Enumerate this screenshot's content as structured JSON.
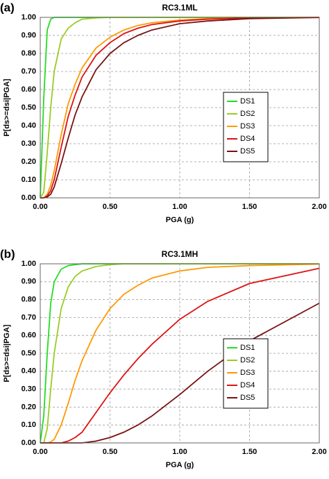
{
  "chart_data": [
    {
      "type": "line",
      "panel": "(a)",
      "title": "RC3.1ML",
      "xlabel": "PGA (g)",
      "ylabel": "P[ds>=dsi|PGA]",
      "x": [
        0,
        0.025,
        0.05,
        0.075,
        0.1,
        0.15,
        0.2,
        0.25,
        0.3,
        0.4,
        0.5,
        0.6,
        0.7,
        0.8,
        1.0,
        1.2,
        1.5,
        2.0
      ],
      "series": [
        {
          "name": "DS1",
          "color": "#22dd22",
          "values": [
            0,
            0.55,
            0.93,
            0.99,
            1,
            1,
            1,
            1,
            1,
            1,
            1,
            1,
            1,
            1,
            1,
            1,
            1,
            1
          ]
        },
        {
          "name": "DS2",
          "color": "#99cc22",
          "values": [
            0,
            0.03,
            0.25,
            0.5,
            0.7,
            0.88,
            0.94,
            0.97,
            0.99,
            0.997,
            1,
            1,
            1,
            1,
            1,
            1,
            1,
            1
          ]
        },
        {
          "name": "DS3",
          "color": "#ff9900",
          "values": [
            0,
            0,
            0.02,
            0.07,
            0.15,
            0.35,
            0.52,
            0.63,
            0.72,
            0.83,
            0.89,
            0.93,
            0.955,
            0.97,
            0.985,
            0.993,
            0.998,
            1
          ]
        },
        {
          "name": "DS4",
          "color": "#dd1111",
          "values": [
            0,
            0,
            0.01,
            0.04,
            0.1,
            0.28,
            0.45,
            0.57,
            0.67,
            0.79,
            0.86,
            0.91,
            0.94,
            0.96,
            0.98,
            0.99,
            0.997,
            1
          ]
        },
        {
          "name": "DS5",
          "color": "#771111",
          "values": [
            0,
            0,
            0.005,
            0.02,
            0.06,
            0.19,
            0.33,
            0.46,
            0.56,
            0.71,
            0.8,
            0.86,
            0.9,
            0.93,
            0.965,
            0.98,
            0.993,
            0.999
          ]
        }
      ],
      "xlim": [
        0,
        2
      ],
      "ylim": [
        0,
        1
      ],
      "xticks": [
        {
          "value": 0,
          "label": "0.00"
        },
        {
          "value": 0.5,
          "label": "0.50"
        },
        {
          "value": 1,
          "label": "1.00"
        },
        {
          "value": 1.5,
          "label": "1.50"
        },
        {
          "value": 2,
          "label": "2.00"
        }
      ],
      "yticks": [
        {
          "value": 0,
          "label": "0.00"
        },
        {
          "value": 0.1,
          "label": "0.10"
        },
        {
          "value": 0.2,
          "label": "0.20"
        },
        {
          "value": 0.3,
          "label": "0.30"
        },
        {
          "value": 0.4,
          "label": "0.40"
        },
        {
          "value": 0.5,
          "label": "0.50"
        },
        {
          "value": 0.6,
          "label": "0.60"
        },
        {
          "value": 0.7,
          "label": "0.70"
        },
        {
          "value": 0.8,
          "label": "0.80"
        },
        {
          "value": 0.9,
          "label": "0.90"
        },
        {
          "value": 1,
          "label": "1.00"
        }
      ],
      "grid": true,
      "legend": "right"
    },
    {
      "type": "line",
      "panel": "(b)",
      "title": "RC3.1MH",
      "xlabel": "PGA (g)",
      "ylabel": "P[ds>=dsi|PGA]",
      "x": [
        0,
        0.025,
        0.05,
        0.075,
        0.1,
        0.15,
        0.2,
        0.25,
        0.3,
        0.4,
        0.5,
        0.6,
        0.7,
        0.8,
        1.0,
        1.2,
        1.5,
        2.0
      ],
      "series": [
        {
          "name": "DS1",
          "color": "#22dd22",
          "values": [
            0,
            0.15,
            0.5,
            0.78,
            0.9,
            0.97,
            0.99,
            0.995,
            1,
            1,
            1,
            1,
            1,
            1,
            1,
            1,
            1,
            1
          ]
        },
        {
          "name": "DS2",
          "color": "#99cc22",
          "values": [
            0,
            0,
            0.08,
            0.3,
            0.5,
            0.75,
            0.87,
            0.93,
            0.96,
            0.985,
            0.995,
            1,
            1,
            1,
            1,
            1,
            1,
            1
          ]
        },
        {
          "name": "DS3",
          "color": "#ff9900",
          "values": [
            0,
            0,
            0,
            0.005,
            0.02,
            0.1,
            0.22,
            0.35,
            0.46,
            0.63,
            0.75,
            0.83,
            0.88,
            0.92,
            0.96,
            0.98,
            0.99,
            0.998
          ]
        },
        {
          "name": "DS4",
          "color": "#dd1111",
          "values": [
            0,
            0,
            0,
            0,
            0,
            0,
            0.01,
            0.03,
            0.06,
            0.17,
            0.28,
            0.38,
            0.47,
            0.55,
            0.69,
            0.79,
            0.89,
            0.975
          ]
        },
        {
          "name": "DS5",
          "color": "#771111",
          "values": [
            0,
            0,
            0,
            0,
            0,
            0,
            0,
            0,
            0,
            0.01,
            0.03,
            0.06,
            0.1,
            0.15,
            0.27,
            0.4,
            0.57,
            0.78
          ]
        }
      ],
      "xlim": [
        0,
        2
      ],
      "ylim": [
        0,
        1
      ],
      "xticks": [
        {
          "value": 0,
          "label": "0.00"
        },
        {
          "value": 0.5,
          "label": "0.50"
        },
        {
          "value": 1,
          "label": "1.00"
        },
        {
          "value": 1.5,
          "label": "1.50"
        },
        {
          "value": 2,
          "label": "2.00"
        }
      ],
      "yticks": [
        {
          "value": 0,
          "label": "0.00"
        },
        {
          "value": 0.1,
          "label": "0.10"
        },
        {
          "value": 0.2,
          "label": "0.20"
        },
        {
          "value": 0.3,
          "label": "0.30"
        },
        {
          "value": 0.4,
          "label": "0.40"
        },
        {
          "value": 0.5,
          "label": "0.50"
        },
        {
          "value": 0.6,
          "label": "0.60"
        },
        {
          "value": 0.7,
          "label": "0.70"
        },
        {
          "value": 0.8,
          "label": "0.80"
        },
        {
          "value": 0.9,
          "label": "0.90"
        },
        {
          "value": 1,
          "label": "1.00"
        }
      ],
      "grid": true,
      "legend": "right"
    }
  ]
}
